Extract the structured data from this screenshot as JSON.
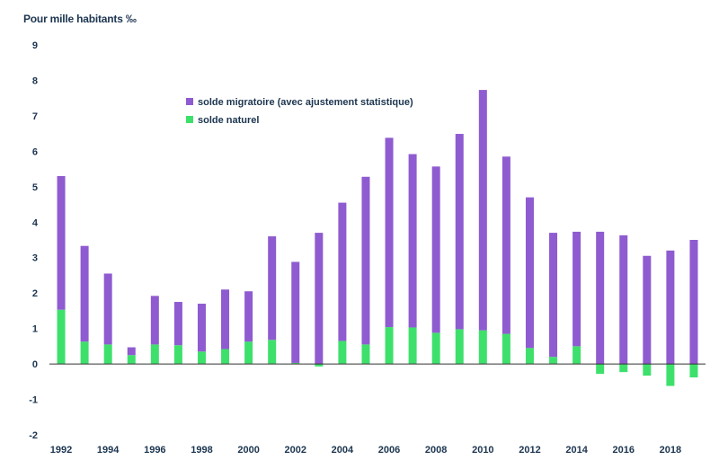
{
  "chart_data": {
    "type": "bar",
    "stacked": true,
    "ylabel": "Pour mille habitants ‰",
    "ylim": [
      -2,
      9
    ],
    "yticks": [
      -2,
      -1,
      0,
      1,
      2,
      3,
      4,
      5,
      6,
      7,
      8,
      9
    ],
    "categories": [
      1992,
      1993,
      1994,
      1995,
      1996,
      1997,
      1998,
      1999,
      2000,
      2001,
      2002,
      2003,
      2004,
      2005,
      2006,
      2007,
      2008,
      2009,
      2010,
      2011,
      2012,
      2013,
      2014,
      2015,
      2016,
      2017,
      2018,
      2019
    ],
    "x_tick_labels": [
      "1992",
      "1994",
      "1996",
      "1998",
      "2000",
      "2002",
      "2004",
      "2006",
      "2008",
      "2010",
      "2012",
      "2014",
      "2016",
      "2018"
    ],
    "legend_position": "top-center",
    "grid": false,
    "series": [
      {
        "name": "solde naturel",
        "color": "#3ee06c",
        "values": [
          1.53,
          0.63,
          0.55,
          0.25,
          0.55,
          0.53,
          0.35,
          0.42,
          0.63,
          0.68,
          0.03,
          -0.07,
          0.65,
          0.55,
          1.04,
          1.03,
          0.88,
          0.98,
          0.95,
          0.85,
          0.45,
          0.2,
          0.5,
          -0.28,
          -0.23,
          -0.33,
          -0.62,
          -0.38
        ]
      },
      {
        "name": "solde migratoire (avec ajustement statistique)",
        "color": "#8f5bd0",
        "values": [
          3.77,
          2.7,
          2.0,
          0.22,
          1.37,
          1.22,
          1.35,
          1.68,
          1.42,
          2.92,
          2.85,
          3.7,
          3.9,
          4.73,
          5.34,
          4.89,
          4.69,
          5.51,
          6.78,
          5.0,
          4.25,
          3.5,
          3.23,
          3.73,
          3.63,
          3.05,
          3.2,
          3.5
        ]
      }
    ]
  }
}
